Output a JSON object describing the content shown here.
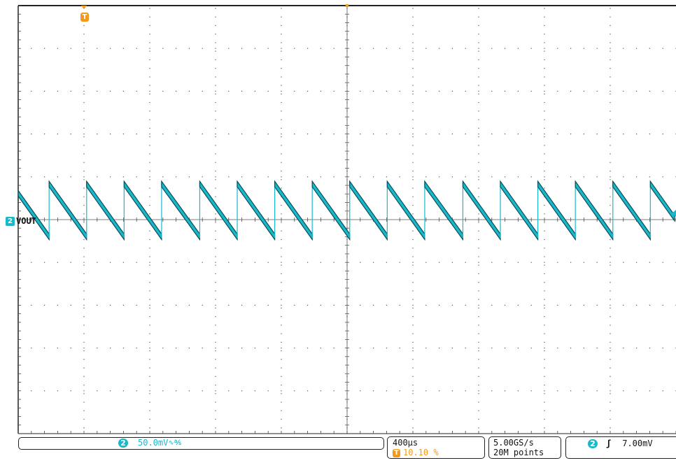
{
  "chart_data": {
    "type": "line",
    "title": "",
    "xlabel": "",
    "ylabel": "",
    "grid": true,
    "x_divisions": 10,
    "y_divisions": 10,
    "time_per_div_us": 400,
    "volts_per_div_mV": 50.0,
    "series": [
      {
        "name": "VOUT",
        "channel": "2",
        "color": "#19b9cc",
        "waveform": "sawtooth",
        "ramp_peak_div": 0.83,
        "ramp_trough_div": -0.4,
        "jump_positions_div": [
          0.47,
          1.04,
          1.61,
          2.18,
          2.76,
          3.33,
          3.9,
          4.47,
          5.04,
          5.61,
          6.18,
          6.76,
          7.33,
          7.9,
          8.47,
          9.04,
          9.61
        ],
        "first_segment_start_div": 0.06
      }
    ]
  },
  "channel_label": {
    "number": "2",
    "name": "VOUT"
  },
  "trigger_marker": {
    "symbol": "T",
    "position_div": 1.0
  },
  "status_bar": {
    "channel_panel": {
      "channel": "2",
      "scale": "50.0mV",
      "coupling_symbol": "∿℁"
    },
    "timebase_panel": {
      "time_per_div": "400µs",
      "trigger_symbol": "T",
      "trigger_position": "10.10 %"
    },
    "acquisition_panel": {
      "sample_rate": "5.00GS/s",
      "record_length": "20M points"
    },
    "trigger_panel": {
      "channel": "2",
      "slope_symbol": "ʃ",
      "level": "7.00mV"
    }
  },
  "colors": {
    "trace": "#19b9cc",
    "trace_edge": "#0d4d55",
    "trigger": "#f39a1c",
    "grid": "#555555"
  }
}
